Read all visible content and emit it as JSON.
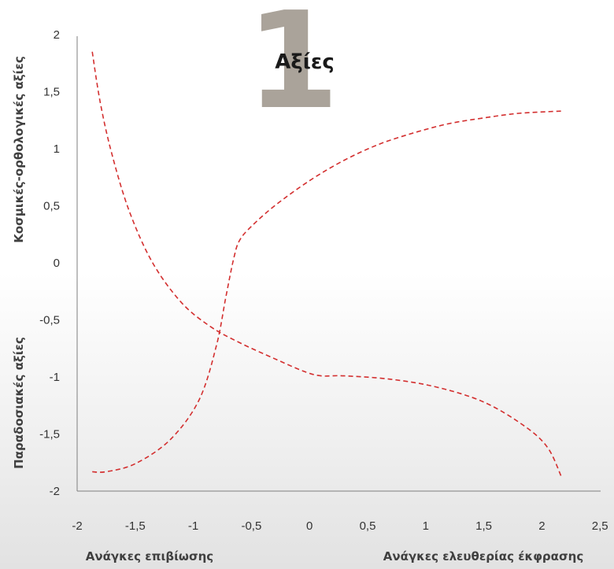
{
  "badge_number": "1",
  "chart_data": {
    "type": "line",
    "title": "Αξίες",
    "xlabel_left": "Ανάγκες επιβίωσης",
    "xlabel_right": "Ανάγκες ελευθερίας έκφρασης",
    "ylabel_top": "Κοσμικές-ορθολογικές αξίες",
    "ylabel_bottom": "Παραδοσιακές αξίες",
    "xlim": [
      -2,
      2.5
    ],
    "ylim": [
      -2,
      2
    ],
    "xticks": [
      "-2",
      "-1,5",
      "-1",
      "-0,5",
      "0",
      "0,5",
      "1",
      "1,5",
      "2",
      "2,5"
    ],
    "yticks": [
      "2",
      "1,5",
      "1",
      "0,5",
      "0",
      "-0,5",
      "-1",
      "-1,5",
      "-2"
    ],
    "grid": false,
    "colors": {
      "series": "#d32f2f",
      "axis": "#7f7f7f",
      "badge": "#aaa39a"
    },
    "series": [
      {
        "style": "dashed",
        "points": [
          [
            -1.87,
            1.85
          ],
          [
            -1.8,
            1.4
          ],
          [
            -1.7,
            0.95
          ],
          [
            -1.55,
            0.45
          ],
          [
            -1.35,
            0.0
          ],
          [
            -1.1,
            -0.35
          ],
          [
            -0.85,
            -0.56
          ],
          [
            -0.6,
            -0.7
          ],
          [
            -0.3,
            -0.84
          ],
          [
            -0.05,
            -0.95
          ],
          [
            0.1,
            -0.99
          ],
          [
            0.3,
            -0.99
          ],
          [
            0.7,
            -1.02
          ],
          [
            1.1,
            -1.09
          ],
          [
            1.5,
            -1.22
          ],
          [
            1.85,
            -1.43
          ],
          [
            2.05,
            -1.62
          ],
          [
            2.17,
            -1.88
          ]
        ]
      },
      {
        "style": "dashed",
        "points": [
          [
            -1.87,
            -1.83
          ],
          [
            -1.75,
            -1.83
          ],
          [
            -1.5,
            -1.76
          ],
          [
            -1.2,
            -1.55
          ],
          [
            -0.95,
            -1.2
          ],
          [
            -0.8,
            -0.72
          ],
          [
            -0.72,
            -0.3
          ],
          [
            -0.65,
            0.05
          ],
          [
            -0.6,
            0.2
          ],
          [
            -0.5,
            0.32
          ],
          [
            -0.3,
            0.5
          ],
          [
            0.0,
            0.72
          ],
          [
            0.3,
            0.9
          ],
          [
            0.6,
            1.04
          ],
          [
            0.9,
            1.14
          ],
          [
            1.2,
            1.22
          ],
          [
            1.5,
            1.27
          ],
          [
            1.8,
            1.31
          ],
          [
            2.17,
            1.33
          ]
        ]
      }
    ]
  }
}
